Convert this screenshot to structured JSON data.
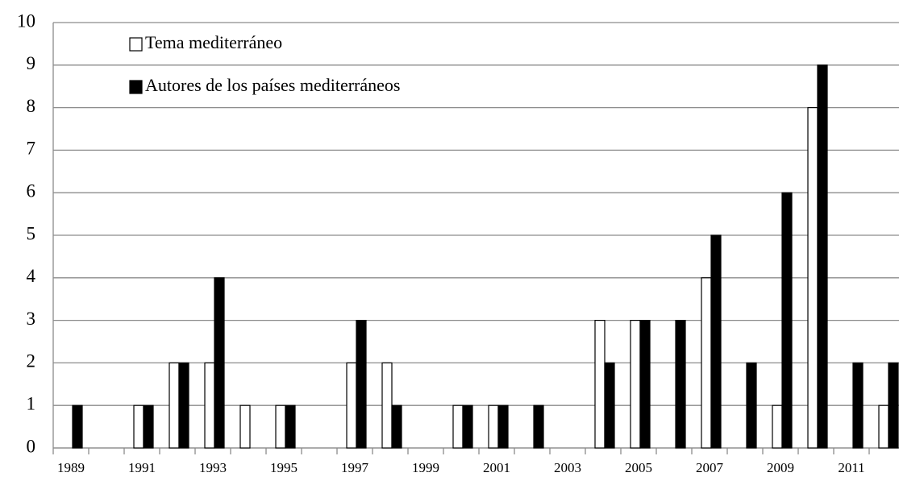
{
  "chart_data": {
    "type": "bar",
    "categories": [
      "1989",
      null,
      "1991",
      null,
      "1993",
      null,
      "1995",
      null,
      "1997",
      null,
      "1999",
      null,
      "2001",
      null,
      "2003",
      null,
      "2005",
      null,
      "2007",
      null,
      "2009",
      null,
      "2011",
      null
    ],
    "series": [
      {
        "name": "Tema mediterráneo",
        "color": "#ffffff",
        "values": [
          0,
          0,
          1,
          2,
          2,
          1,
          1,
          0,
          2,
          2,
          0,
          1,
          1,
          0,
          0,
          3,
          3,
          0,
          4,
          0,
          1,
          8,
          0,
          1
        ]
      },
      {
        "name": "Autores de los países mediterráneos",
        "color": "#000000",
        "values": [
          1,
          0,
          1,
          2,
          4,
          0,
          1,
          0,
          3,
          1,
          0,
          1,
          1,
          1,
          0,
          2,
          3,
          3,
          5,
          2,
          6,
          9,
          2,
          2
        ]
      }
    ],
    "ylim": [
      0,
      10
    ],
    "yticks": [
      0,
      1,
      2,
      3,
      4,
      5,
      6,
      7,
      8,
      9,
      10
    ],
    "grid": true,
    "legend": "top-left"
  }
}
